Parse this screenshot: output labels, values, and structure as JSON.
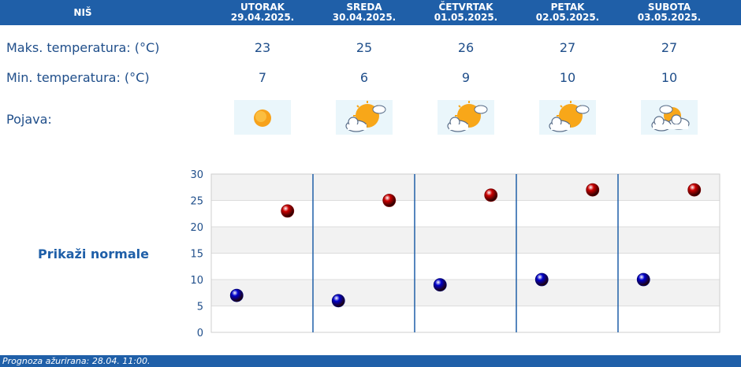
{
  "header": {
    "city": "NIŠ",
    "days": [
      {
        "name": "UTORAK",
        "date": "29.04.2025."
      },
      {
        "name": "SREDA",
        "date": "30.04.2025."
      },
      {
        "name": "ČETVRTAK",
        "date": "01.05.2025."
      },
      {
        "name": "PETAK",
        "date": "02.05.2025."
      },
      {
        "name": "SUBOTA",
        "date": "03.05.2025."
      }
    ]
  },
  "rows": {
    "max_label": "Maks. temperatura: (°C)",
    "min_label": "Min. temperatura: (°C)",
    "phenomenon_label": "Pojava:",
    "max_values": [
      "23",
      "25",
      "26",
      "27",
      "27"
    ],
    "min_values": [
      "7",
      "6",
      "9",
      "10",
      "10"
    ],
    "icons": [
      "sun-icon",
      "sun-cloud-icon",
      "sun-cloud-icon",
      "sun-cloud-icon",
      "cloud-sun-icon"
    ]
  },
  "normals_link": "Prikaži normale",
  "footer": {
    "text": "Prognoza ažurirana:  28.04. 11:00."
  },
  "colors": {
    "brand": "#1f5fa8",
    "max_marker": "#cc0000",
    "min_marker": "#0000cc"
  },
  "chart_data": {
    "type": "scatter",
    "title": "",
    "xlabel": "",
    "ylabel": "",
    "ylim": [
      0,
      30
    ],
    "yticks": [
      "0",
      "5",
      "10",
      "15",
      "20",
      "25",
      "30"
    ],
    "categories": [
      "UTORAK",
      "SREDA",
      "ČETVRTAK",
      "PETAK",
      "SUBOTA"
    ],
    "series": [
      {
        "values": [
          23,
          25,
          26,
          27,
          27
        ],
        "color": "#cc0000"
      },
      {
        "values": [
          7,
          6,
          9,
          10,
          10
        ],
        "color": "#0000cc"
      }
    ],
    "grid": true
  }
}
